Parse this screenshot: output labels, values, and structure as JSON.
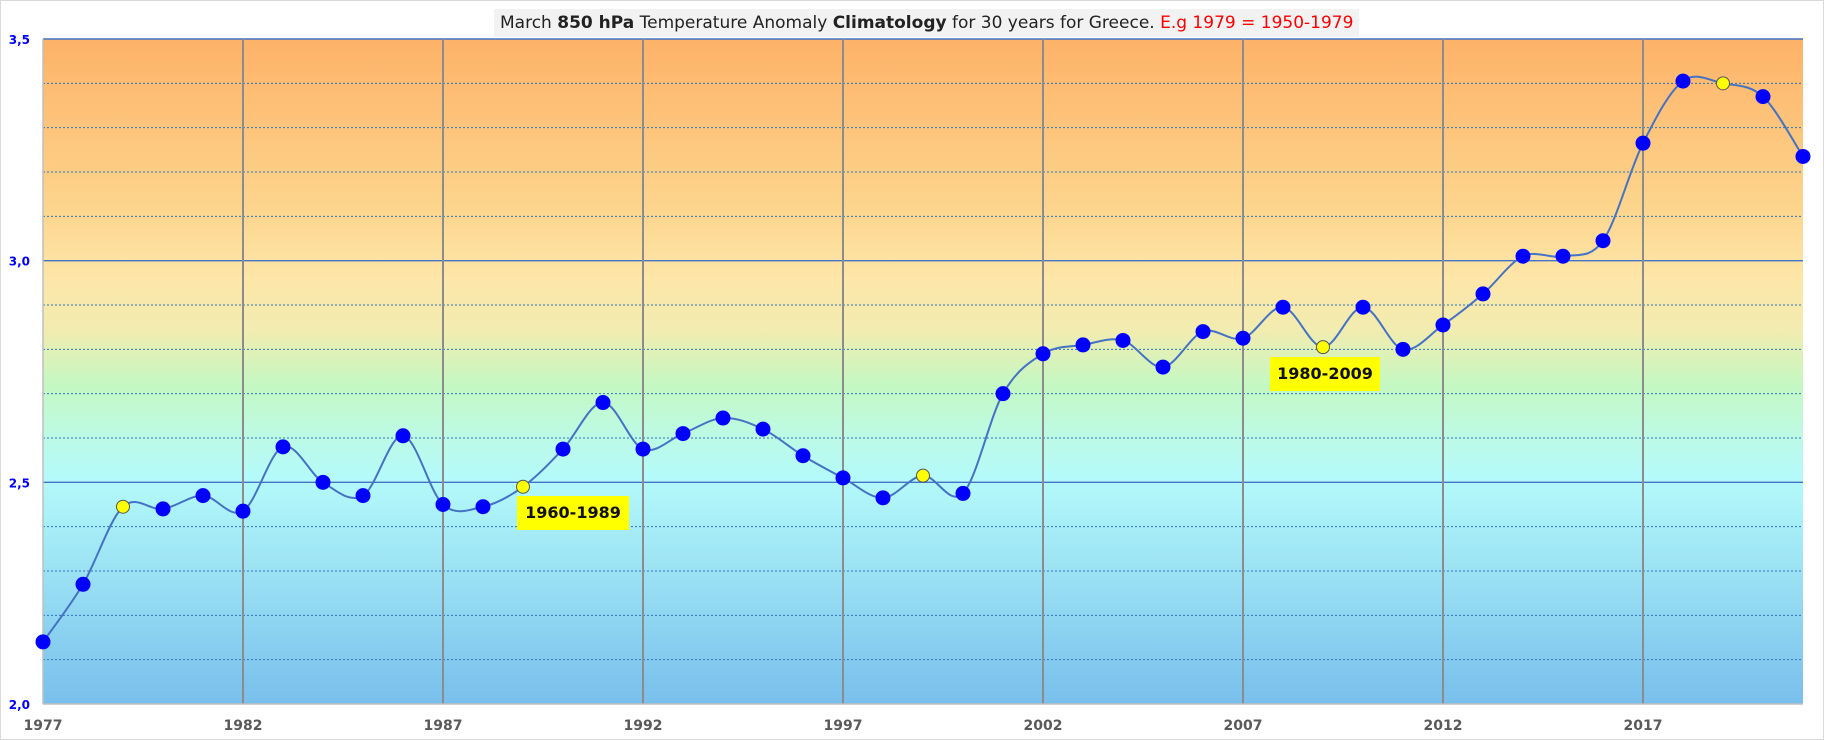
{
  "chart_data": {
    "type": "line",
    "title": {
      "parts": [
        {
          "text": "March ",
          "style": "normal"
        },
        {
          "text": "850 hPa",
          "style": "bold"
        },
        {
          "text": " Temperature  Anomaly ",
          "style": "normal"
        },
        {
          "text": "Climatology",
          "style": "bold"
        },
        {
          "text": "  for 30 years for Greece.  ",
          "style": "normal"
        },
        {
          "text": "E.g 1979 = 1950-1979",
          "style": "red"
        }
      ]
    },
    "xlabel": "",
    "ylabel": "",
    "xlim": [
      1977,
      2021
    ],
    "ylim": [
      2.0,
      3.5
    ],
    "x_ticks": [
      "1977",
      "1982",
      "1987",
      "1992",
      "1997",
      "2002",
      "2007",
      "2012",
      "2017"
    ],
    "y_ticks": [
      "2,0",
      "2,5",
      "3,0",
      "3,5"
    ],
    "grid": "on",
    "colors": {
      "marker": "#0000ff",
      "highlight": "#ffff00",
      "line": "#4472c4",
      "tick_label": "#0000ff"
    },
    "x": [
      1977,
      1978,
      1979,
      1980,
      1981,
      1982,
      1983,
      1984,
      1985,
      1986,
      1987,
      1988,
      1989,
      1990,
      1991,
      1992,
      1993,
      1994,
      1995,
      1996,
      1997,
      1998,
      1999,
      2000,
      2001,
      2002,
      2003,
      2004,
      2005,
      2006,
      2007,
      2008,
      2009,
      2010,
      2011,
      2012,
      2013,
      2014,
      2015,
      2016,
      2017,
      2018,
      2019,
      2020,
      2021
    ],
    "series": [
      {
        "name": "30-year March 850 hPa temperature anomaly climatology",
        "values": [
          2.14,
          2.27,
          2.445,
          2.44,
          2.47,
          2.435,
          2.58,
          2.5,
          2.47,
          2.605,
          2.45,
          2.445,
          2.49,
          2.575,
          2.68,
          2.575,
          2.61,
          2.645,
          2.62,
          2.56,
          2.51,
          2.465,
          2.515,
          2.475,
          2.7,
          2.79,
          2.81,
          2.82,
          2.76,
          2.84,
          2.825,
          2.895,
          2.805,
          2.895,
          2.8,
          2.855,
          2.925,
          3.01,
          3.01,
          3.045,
          3.265,
          3.405,
          3.4,
          3.37,
          3.235
        ]
      }
    ],
    "highlighted_x": [
      1979,
      1989,
      1999,
      2009,
      2019
    ],
    "annotations": [
      {
        "text": "1960-1989",
        "x": 1989
      },
      {
        "text": "1980-2009",
        "x": 2009
      }
    ]
  }
}
